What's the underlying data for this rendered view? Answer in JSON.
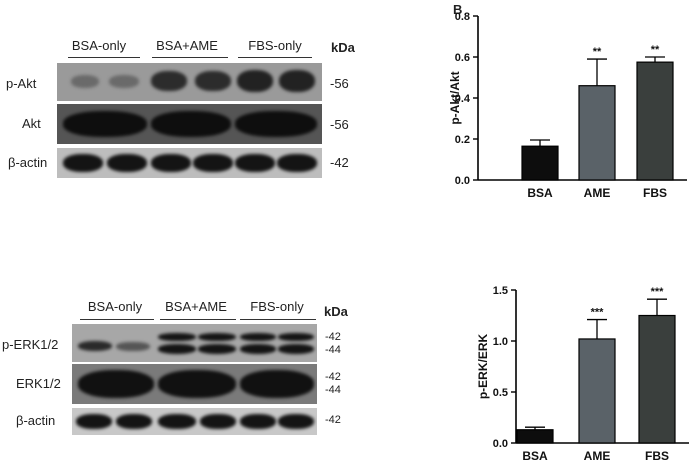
{
  "figure": {
    "panel_letter": "B"
  },
  "blot_top": {
    "groups": [
      "BSA-only",
      "BSA+AME",
      "FBS-only"
    ],
    "kda_title": "kDa",
    "rows": [
      {
        "label": "p-Akt",
        "kda": [
          "-56"
        ]
      },
      {
        "label": "Akt",
        "kda": [
          "-56"
        ]
      },
      {
        "label": "β-actin",
        "kda": [
          "-42"
        ]
      }
    ]
  },
  "blot_bottom": {
    "groups": [
      "BSA-only",
      "BSA+AME",
      "FBS-only"
    ],
    "kda_title": "kDa",
    "rows": [
      {
        "label": "p-ERK1/2",
        "kda": [
          "-42",
          "-44"
        ]
      },
      {
        "label": "ERK1/2",
        "kda": [
          "-42",
          "-44"
        ]
      },
      {
        "label": "β-actin",
        "kda": [
          "-42"
        ]
      }
    ]
  },
  "chart_data": [
    {
      "type": "bar",
      "categories": [
        "BSA",
        "AME",
        "FBS"
      ],
      "values": [
        0.165,
        0.46,
        0.575
      ],
      "errors": [
        0.03,
        0.13,
        0.025
      ],
      "significance": [
        "",
        "**",
        "**"
      ],
      "ylabel": "p-Akt/Akt",
      "xlabel": "",
      "ylim": [
        0,
        0.8
      ],
      "yticks": [
        "0.0",
        "0.2",
        "0.4",
        "0.6",
        "0.8"
      ],
      "colors": [
        "#0d0d0d",
        "#5a6268",
        "#3a3f3d"
      ],
      "grid": false
    },
    {
      "type": "bar",
      "categories": [
        "BSA",
        "AME",
        "FBS"
      ],
      "values": [
        0.13,
        1.02,
        1.25
      ],
      "errors": [
        0.025,
        0.19,
        0.16
      ],
      "significance": [
        "",
        "***",
        "***"
      ],
      "ylabel": "p-ERK/ERK",
      "xlabel": "",
      "ylim": [
        0,
        1.5
      ],
      "yticks": [
        "0.0",
        "0.5",
        "1.0",
        "1.5"
      ],
      "colors": [
        "#0d0d0d",
        "#5a6268",
        "#3a3f3d"
      ],
      "grid": false
    }
  ]
}
